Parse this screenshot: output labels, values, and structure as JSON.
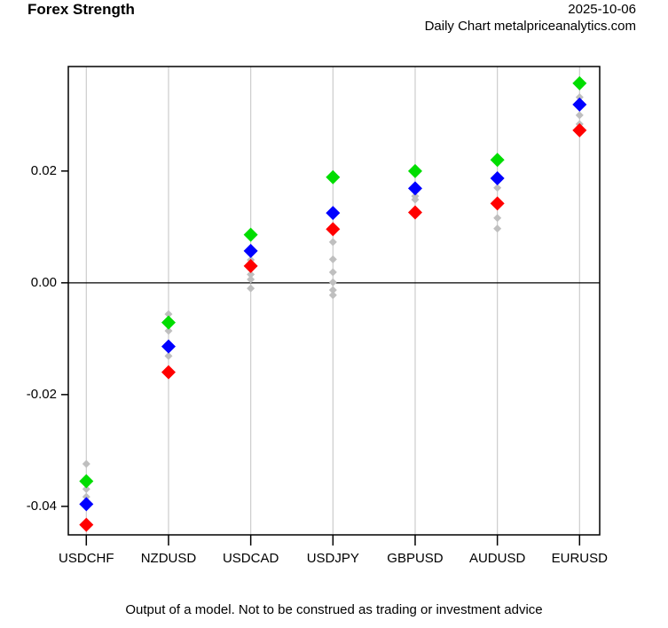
{
  "header": {
    "title": "Forex Strength",
    "date": "2025-10-06",
    "subtitle": "Daily Chart metalpriceanalytics.com"
  },
  "caption": "Output of a model. Not to be construed as trading or investment advice",
  "chart_data": {
    "type": "scatter",
    "title": "Forex Strength",
    "date": "2025-10-06",
    "subtitle": "Daily Chart metalpriceanalytics.com",
    "xlabel": "",
    "ylabel": "",
    "categories": [
      "USDCHF",
      "NZDUSD",
      "USDCAD",
      "USDJPY",
      "GBPUSD",
      "AUDUSD",
      "EURUSD"
    ],
    "ylim": [
      -0.0451,
      0.0387
    ],
    "yticks": [
      {
        "value": 0.02,
        "label": "0.02"
      },
      {
        "value": 0.0,
        "label": "0.00"
      },
      {
        "value": -0.02,
        "label": "-0.02"
      },
      {
        "value": -0.04,
        "label": "-0.04"
      }
    ],
    "grid": "vertical-category-lines",
    "zero_line": true,
    "legend": "none",
    "marker": "diamond",
    "colors": {
      "green": "#00dd00",
      "blue": "#0000ff",
      "red": "#ff0000",
      "gray": "#bfbfbf",
      "gridline": "#cccccc",
      "axis": "#000000",
      "background": "#ffffff"
    },
    "series": [
      {
        "name": "green",
        "color": "#00dd00",
        "marker": "diamond",
        "size": "large",
        "values": [
          -0.0355,
          -0.0071,
          0.0086,
          0.0189,
          0.02,
          0.022,
          0.0357
        ]
      },
      {
        "name": "blue",
        "color": "#0000ff",
        "marker": "diamond",
        "size": "large",
        "values": [
          -0.0396,
          -0.0114,
          0.0057,
          0.0125,
          0.0169,
          0.0187,
          0.0319
        ]
      },
      {
        "name": "red",
        "color": "#ff0000",
        "marker": "diamond",
        "size": "large",
        "values": [
          -0.0433,
          -0.016,
          0.003,
          0.0096,
          0.0126,
          0.0142,
          0.0273
        ]
      }
    ],
    "minor_series": {
      "name": "gray-minor",
      "color": "#bfbfbf",
      "marker": "diamond",
      "size": "small",
      "values_by_category": [
        [
          -0.0324,
          -0.0369,
          -0.0383
        ],
        [
          -0.0056,
          -0.0086,
          -0.0131
        ],
        [
          0.0041,
          0.0015,
          0.0006,
          -0.001
        ],
        [
          0.0073,
          0.0042,
          0.0019,
          0.0001,
          -0.0013,
          -0.0022
        ],
        [
          0.0155,
          0.0149
        ],
        [
          0.017,
          0.0116,
          0.0097
        ],
        [
          0.0332,
          0.03,
          0.0284
        ]
      ]
    }
  }
}
